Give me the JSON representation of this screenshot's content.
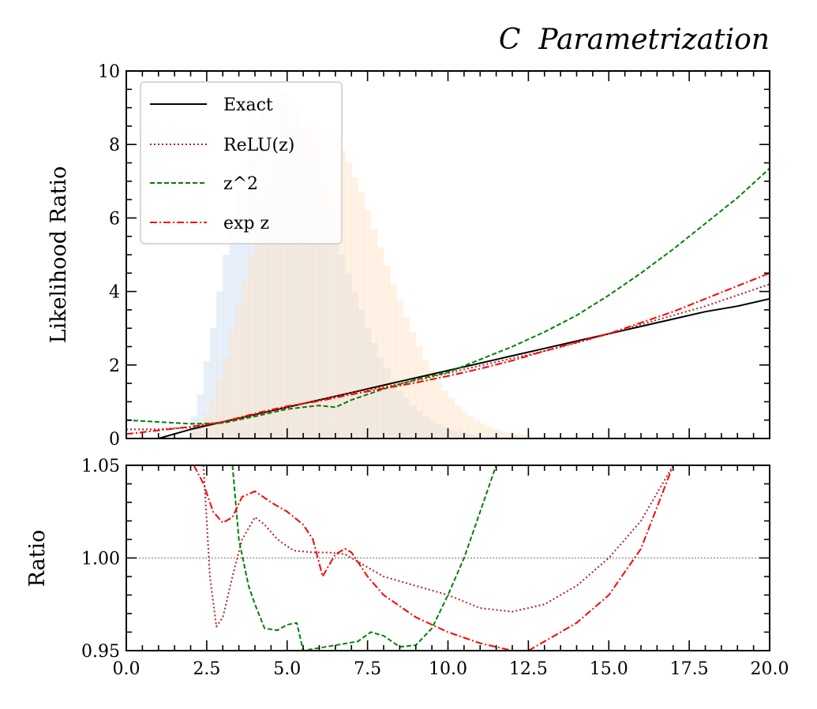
{
  "figure": {
    "title": "C  Parametrization"
  },
  "chart_data": [
    {
      "type": "line",
      "panel": "main",
      "title": "C  Parametrization",
      "xlabel": "",
      "ylabel": "Likelihood Ratio",
      "xlim": [
        0,
        20
      ],
      "ylim": [
        0,
        10
      ],
      "yticks": [
        "0",
        "2",
        "4",
        "6",
        "8",
        "10"
      ],
      "legend": {
        "placement": "top-left"
      },
      "series": [
        {
          "name": "Exact",
          "color": "#000000",
          "style": "solid",
          "x": [
            1,
            2,
            3,
            4,
            5,
            6,
            7,
            8,
            9,
            10,
            11,
            12,
            13,
            14,
            15,
            16,
            17,
            18,
            19,
            20
          ],
          "y": [
            0.0,
            0.25,
            0.45,
            0.65,
            0.85,
            1.05,
            1.25,
            1.45,
            1.65,
            1.85,
            2.05,
            2.25,
            2.45,
            2.65,
            2.85,
            3.05,
            3.25,
            3.45,
            3.6,
            3.8
          ]
        },
        {
          "name": "ReLU(z)",
          "color": "#b22222",
          "style": "dotted",
          "x": [
            0,
            1,
            2,
            3,
            4,
            5,
            6,
            7,
            8,
            9,
            10,
            11,
            12,
            13,
            14,
            15,
            16,
            17,
            18,
            19,
            20
          ],
          "y": [
            0.25,
            0.25,
            0.3,
            0.45,
            0.65,
            0.85,
            1.05,
            1.25,
            1.4,
            1.58,
            1.78,
            1.98,
            2.18,
            2.38,
            2.6,
            2.85,
            3.1,
            3.35,
            3.6,
            3.9,
            4.2
          ]
        },
        {
          "name": "z^2",
          "color": "#008000",
          "style": "dashed",
          "x": [
            0,
            1,
            2,
            3,
            4,
            5,
            6,
            6.5,
            7,
            8,
            9,
            10,
            11,
            12,
            13,
            14,
            15,
            16,
            17,
            18,
            19,
            20
          ],
          "y": [
            0.5,
            0.45,
            0.4,
            0.42,
            0.6,
            0.8,
            0.9,
            0.85,
            1.05,
            1.35,
            1.6,
            1.8,
            2.15,
            2.5,
            2.9,
            3.35,
            3.9,
            4.5,
            5.15,
            5.85,
            6.55,
            7.35
          ]
        },
        {
          "name": "exp z",
          "color": "#ff0000",
          "style": "dashdot",
          "x": [
            0,
            1,
            2,
            3,
            4,
            5,
            6,
            7,
            8,
            9,
            10,
            11,
            12,
            13,
            14,
            15,
            16,
            17,
            18,
            19,
            20
          ],
          "y": [
            0.12,
            0.22,
            0.32,
            0.45,
            0.68,
            0.88,
            1.02,
            1.2,
            1.36,
            1.52,
            1.7,
            1.9,
            2.12,
            2.38,
            2.62,
            2.85,
            3.15,
            3.45,
            3.8,
            4.15,
            4.5
          ]
        }
      ],
      "histograms": [
        {
          "color": "#cfe2f3",
          "opacity": 0.5,
          "bin_width": 0.2,
          "x": [
            2.0,
            2.2,
            2.4,
            2.6,
            2.8,
            3.0,
            3.2,
            3.4,
            3.6,
            3.8,
            4.0,
            4.2,
            4.4,
            4.6,
            4.8,
            5.0,
            5.2,
            5.4,
            5.6,
            5.8,
            6.0,
            6.2,
            6.4,
            6.6,
            6.8,
            7.0,
            7.2,
            7.4,
            7.6,
            7.8,
            8.0,
            8.2,
            8.4,
            8.6,
            8.8,
            9.0,
            9.2,
            9.4,
            9.6,
            9.8,
            10.0,
            10.2,
            10.4,
            10.6,
            10.8,
            11.0,
            11.2,
            11.4,
            11.6,
            11.8,
            12.0,
            12.2,
            12.4,
            12.6,
            12.8,
            13.0,
            13.2,
            13.4,
            13.6,
            13.8,
            14.0
          ],
          "values": [
            0.6,
            1.2,
            2.1,
            3.0,
            4.0,
            5.0,
            5.9,
            6.8,
            7.5,
            8.2,
            8.7,
            9.1,
            9.4,
            9.5,
            9.4,
            9.2,
            8.9,
            8.4,
            7.9,
            7.4,
            6.8,
            6.2,
            5.6,
            5.0,
            4.5,
            4.0,
            3.5,
            3.0,
            2.6,
            2.2,
            1.9,
            1.6,
            1.3,
            1.1,
            0.9,
            0.75,
            0.6,
            0.5,
            0.4,
            0.32,
            0.25,
            0.2,
            0.16,
            0.12,
            0.09,
            0.07,
            0.05,
            0.04,
            0.03,
            0.02,
            0.02,
            0.01,
            0.01,
            0.01,
            0.0,
            0.0,
            0.0,
            0.0,
            0.0,
            0.0,
            0.0
          ]
        },
        {
          "color": "#ffe0c0",
          "opacity": 0.45,
          "bin_width": 0.2,
          "x": [
            2.0,
            2.2,
            2.4,
            2.6,
            2.8,
            3.0,
            3.2,
            3.4,
            3.6,
            3.8,
            4.0,
            4.2,
            4.4,
            4.6,
            4.8,
            5.0,
            5.2,
            5.4,
            5.6,
            5.8,
            6.0,
            6.2,
            6.4,
            6.6,
            6.8,
            7.0,
            7.2,
            7.4,
            7.6,
            7.8,
            8.0,
            8.2,
            8.4,
            8.6,
            8.8,
            9.0,
            9.2,
            9.4,
            9.6,
            9.8,
            10.0,
            10.2,
            10.4,
            10.6,
            10.8,
            11.0,
            11.2,
            11.4,
            11.6,
            11.8,
            12.0,
            12.2,
            12.4,
            12.6,
            12.8,
            13.0,
            13.2,
            13.4,
            13.6,
            13.8,
            14.0,
            14.2,
            14.4,
            14.6,
            14.8,
            15.0
          ],
          "values": [
            0.2,
            0.4,
            0.7,
            1.1,
            1.6,
            2.2,
            2.9,
            3.6,
            4.3,
            5.0,
            5.7,
            6.3,
            6.9,
            7.4,
            7.8,
            8.1,
            8.3,
            8.45,
            8.5,
            8.5,
            8.45,
            8.3,
            8.1,
            7.85,
            7.5,
            7.1,
            6.7,
            6.2,
            5.7,
            5.2,
            4.7,
            4.2,
            3.75,
            3.3,
            2.9,
            2.5,
            2.15,
            1.85,
            1.55,
            1.3,
            1.1,
            0.9,
            0.75,
            0.6,
            0.5,
            0.4,
            0.32,
            0.26,
            0.2,
            0.16,
            0.12,
            0.1,
            0.08,
            0.06,
            0.05,
            0.04,
            0.03,
            0.02,
            0.02,
            0.01,
            0.01,
            0.01,
            0.0,
            0.0,
            0.0,
            0.0
          ]
        }
      ]
    },
    {
      "type": "line",
      "panel": "ratio",
      "xlabel": "",
      "ylabel": "Ratio",
      "xlim": [
        0,
        20
      ],
      "ylim": [
        0.95,
        1.05
      ],
      "xticks": [
        "0.0",
        "2.5",
        "5.0",
        "7.5",
        "10.0",
        "12.5",
        "15.0",
        "17.5",
        "20.0"
      ],
      "yticks": [
        "0.95",
        "1.00",
        "1.05"
      ],
      "reference_line": 1.0,
      "series": [
        {
          "name": "ReLU(z)",
          "color": "#b22222",
          "style": "dotted",
          "x": [
            2.4,
            2.5,
            2.6,
            2.8,
            3.0,
            3.3,
            3.6,
            4.0,
            4.3,
            4.7,
            5.2,
            5.8,
            6.3,
            6.8,
            7.2,
            8.0,
            9.0,
            10.0,
            11.0,
            12.0,
            13.0,
            14.0,
            15.0,
            16.0,
            17.0
          ],
          "y": [
            1.05,
            1.02,
            0.99,
            0.963,
            0.968,
            0.99,
            1.01,
            1.022,
            1.018,
            1.01,
            1.004,
            1.003,
            1.003,
            1.002,
            0.998,
            0.99,
            0.985,
            0.98,
            0.973,
            0.971,
            0.975,
            0.985,
            1.0,
            1.02,
            1.05
          ]
        },
        {
          "name": "z^2",
          "color": "#008000",
          "style": "dashed",
          "x": [
            3.3,
            3.5,
            3.8,
            4.0,
            4.3,
            4.7,
            5.0,
            5.3,
            5.5,
            7.2,
            7.6,
            8.0,
            8.5,
            9.0,
            9.5,
            10.0,
            10.5,
            11.0,
            11.5
          ],
          "y": [
            1.05,
            1.01,
            0.985,
            0.975,
            0.962,
            0.961,
            0.964,
            0.965,
            0.95,
            0.955,
            0.96,
            0.958,
            0.952,
            0.953,
            0.962,
            0.98,
            1.0,
            1.025,
            1.05
          ]
        },
        {
          "name": "exp z",
          "color": "#ff0000",
          "style": "dashdot",
          "x": [
            2.1,
            2.4,
            2.7,
            3.0,
            3.3,
            3.6,
            4.0,
            4.5,
            5.0,
            5.5,
            5.8,
            6.0,
            6.1,
            6.3,
            6.5,
            6.8,
            7.0,
            7.5,
            8.0,
            9.0,
            10.0,
            11.0,
            12.0,
            12.5,
            13.0,
            14.0,
            15.0,
            16.0,
            17.0
          ],
          "y": [
            1.05,
            1.04,
            1.025,
            1.019,
            1.022,
            1.033,
            1.036,
            1.03,
            1.025,
            1.018,
            1.01,
            0.997,
            0.99,
            0.996,
            1.002,
            1.005,
            1.003,
            0.99,
            0.98,
            0.968,
            0.96,
            0.954,
            0.95,
            0.95,
            0.955,
            0.965,
            0.98,
            1.005,
            1.05
          ]
        }
      ]
    }
  ]
}
